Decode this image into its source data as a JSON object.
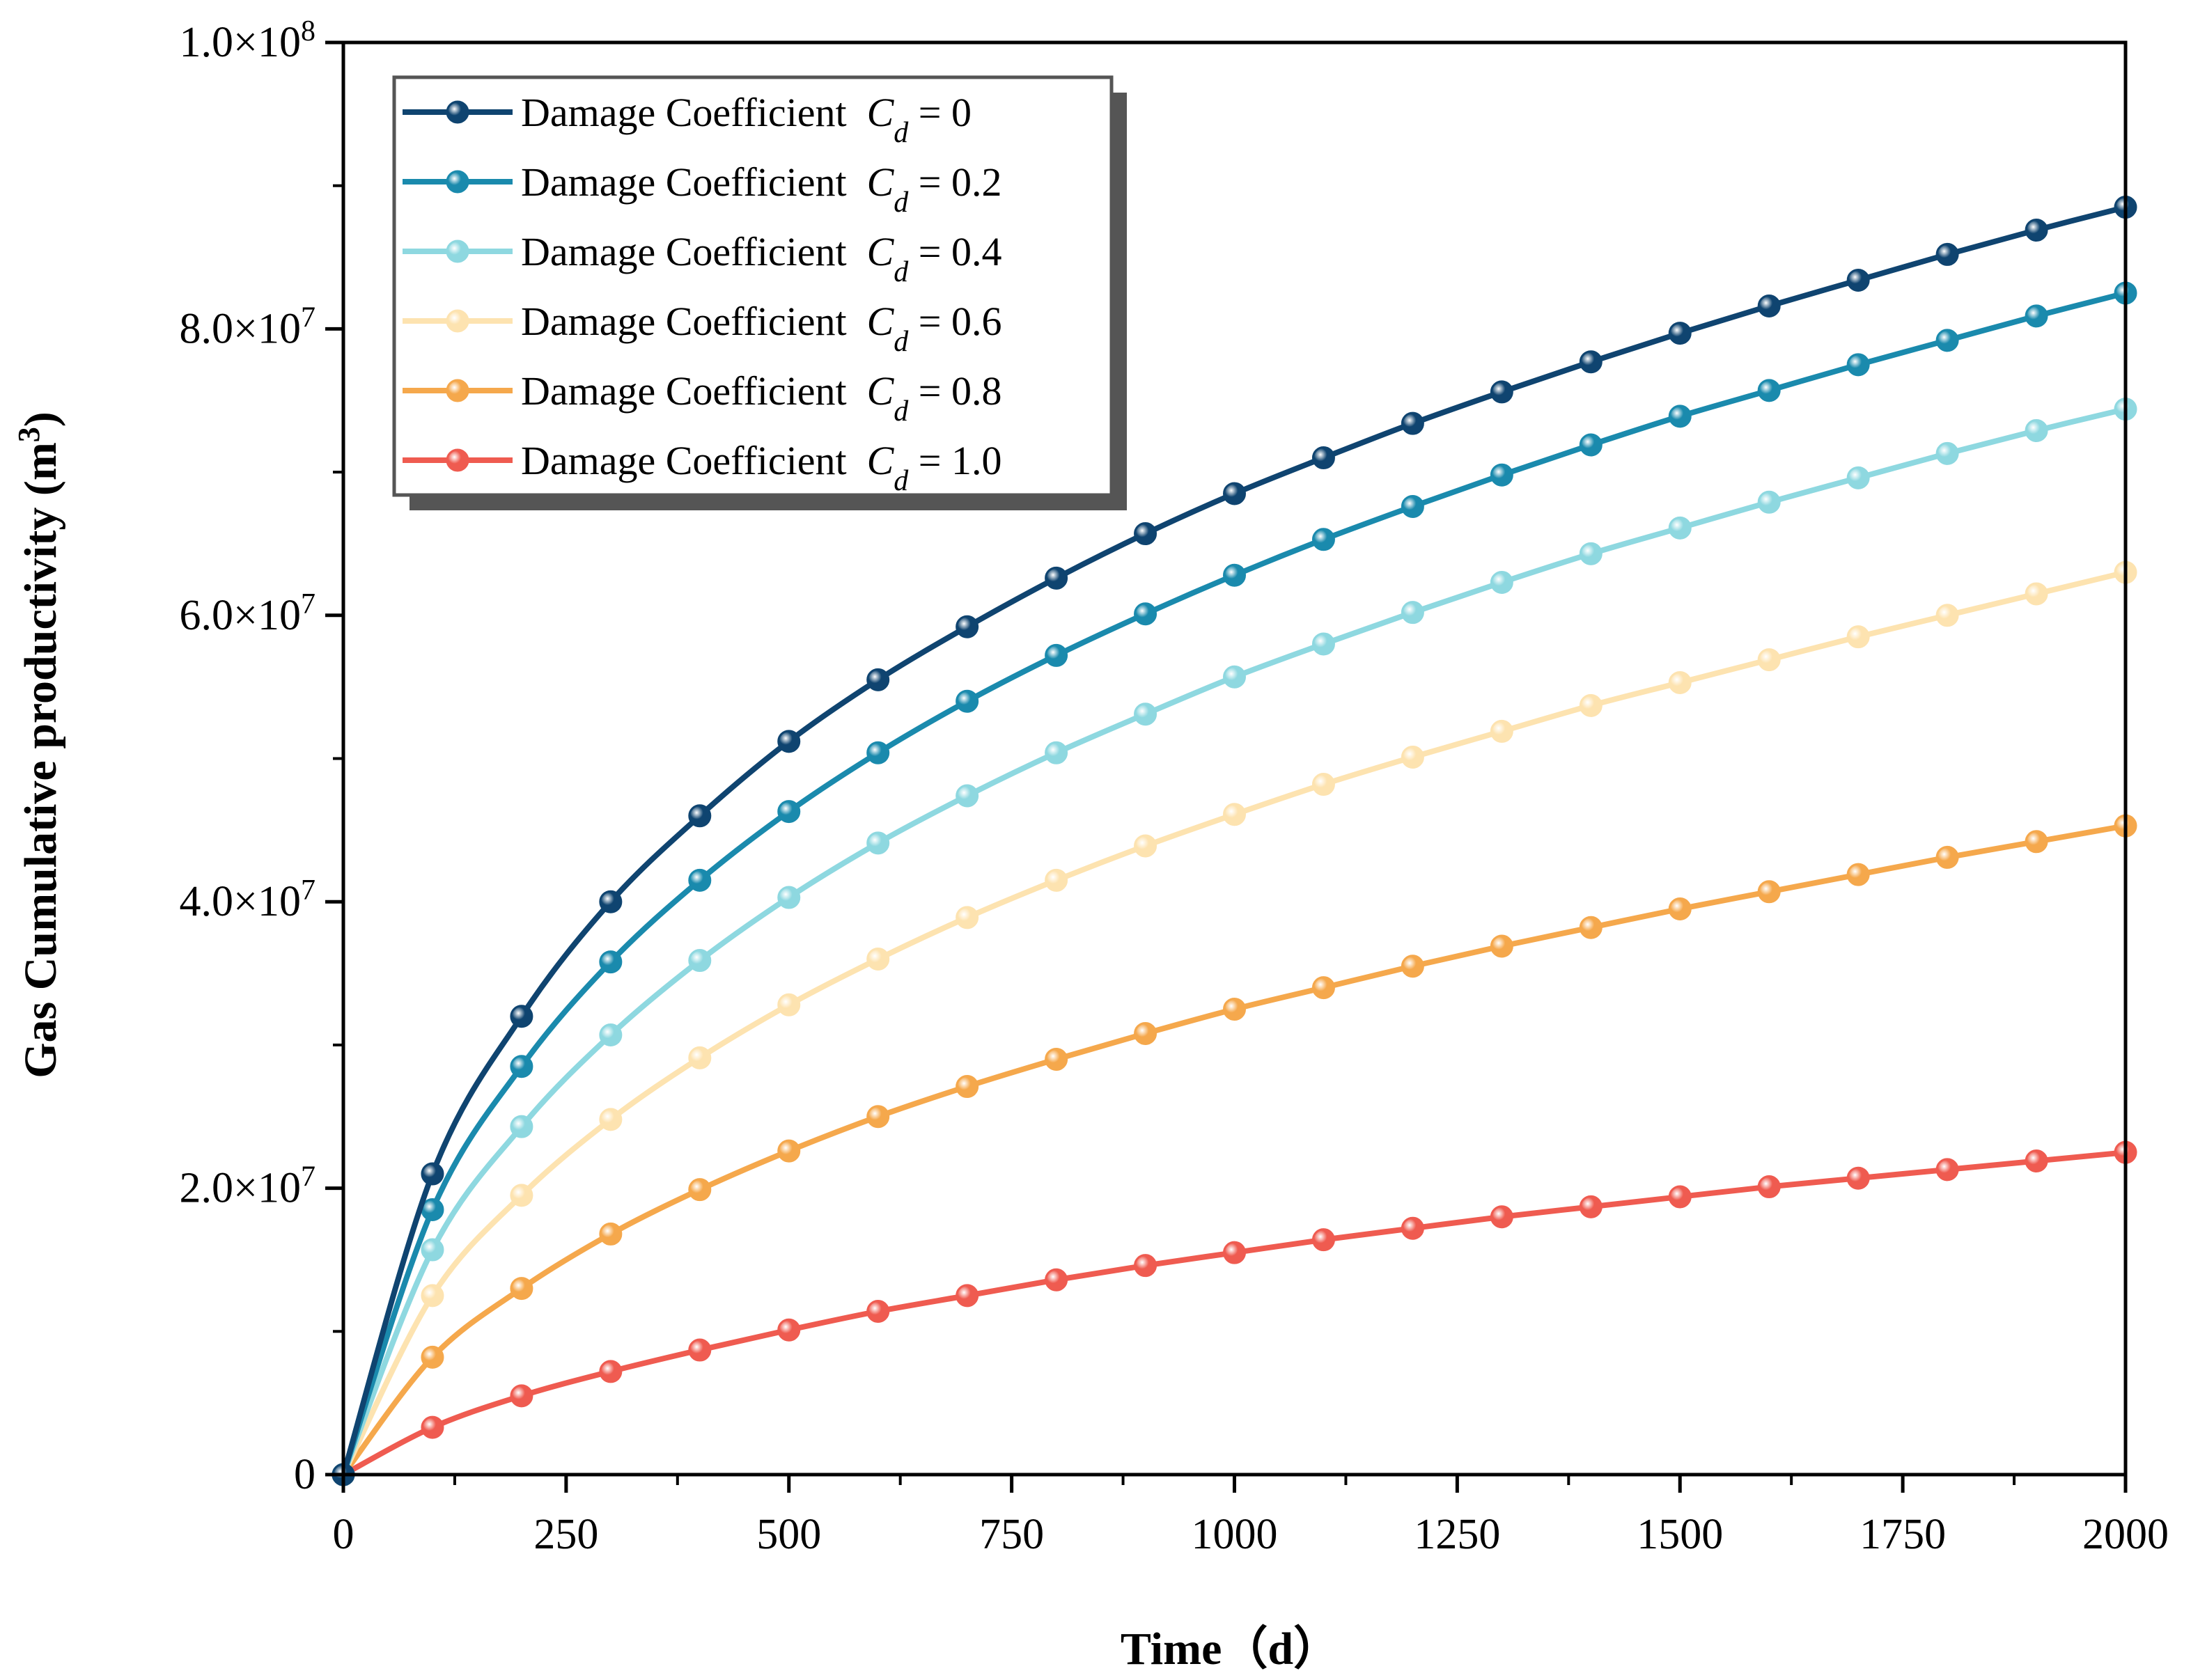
{
  "chart_data": {
    "type": "line",
    "title": "",
    "xlabel": "Time（d）",
    "ylabel": {
      "main": "Gas Cumulative productivity (m",
      "sup": "3",
      "end": ")"
    },
    "xlim": [
      0,
      2000
    ],
    "ylim": [
      0,
      100000000
    ],
    "x_ticks": [
      0,
      250,
      500,
      750,
      1000,
      1250,
      1500,
      1750,
      2000
    ],
    "x_tick_labels": [
      "0",
      "250",
      "500",
      "750",
      "1000",
      "1250",
      "1500",
      "1750",
      "2000"
    ],
    "y_ticks": [
      0,
      20000000,
      40000000,
      60000000,
      80000000,
      100000000
    ],
    "y_tick_labels": [
      {
        "base": "0",
        "exp": ""
      },
      {
        "base": "2.0×10",
        "exp": "7"
      },
      {
        "base": "4.0×10",
        "exp": "7"
      },
      {
        "base": "6.0×10",
        "exp": "7"
      },
      {
        "base": "8.0×10",
        "exp": "7"
      },
      {
        "base": "1.0×10",
        "exp": "8"
      }
    ],
    "grid": false,
    "legend_position": "top-left",
    "x": [
      0,
      100,
      200,
      300,
      400,
      500,
      600,
      700,
      800,
      900,
      1000,
      1100,
      1200,
      1300,
      1400,
      1500,
      1600,
      1700,
      1800,
      1900,
      2000
    ],
    "series": [
      {
        "name": "Damage Coefficient",
        "var": "C",
        "sub": "d",
        "eq": "= 0",
        "color": "#0f4470",
        "values": [
          0,
          21000000,
          32000000,
          40000000,
          46000000,
          51200000,
          55500000,
          59200000,
          62600000,
          65700000,
          68500000,
          71000000,
          73400000,
          75600000,
          77700000,
          79700000,
          81600000,
          83400000,
          85200000,
          86900000,
          88500000
        ]
      },
      {
        "name": "Damage Coefficient",
        "var": "C",
        "sub": "d",
        "eq": "= 0.2",
        "color": "#1a8aad",
        "values": [
          0,
          18500000,
          28500000,
          35800000,
          41500000,
          46300000,
          50400000,
          54000000,
          57200000,
          60100000,
          62800000,
          65300000,
          67600000,
          69800000,
          71900000,
          73900000,
          75700000,
          77500000,
          79200000,
          80900000,
          82500000
        ]
      },
      {
        "name": "Damage Coefficient",
        "var": "C",
        "sub": "d",
        "eq": "= 0.4",
        "color": "#8ed8e0",
        "values": [
          0,
          15700000,
          24300000,
          30700000,
          35900000,
          40300000,
          44100000,
          47400000,
          50400000,
          53100000,
          55700000,
          58000000,
          60200000,
          62300000,
          64300000,
          66100000,
          67900000,
          69600000,
          71300000,
          72900000,
          74400000
        ]
      },
      {
        "name": "Damage Coefficient",
        "var": "C",
        "sub": "d",
        "eq": "= 0.6",
        "color": "#fde3b0",
        "values": [
          0,
          12500000,
          19500000,
          24800000,
          29100000,
          32800000,
          36000000,
          38900000,
          41500000,
          43900000,
          46100000,
          48200000,
          50100000,
          51900000,
          53700000,
          55300000,
          56900000,
          58500000,
          60000000,
          61500000,
          63000000
        ]
      },
      {
        "name": "Damage Coefficient",
        "var": "C",
        "sub": "d",
        "eq": "= 0.8",
        "color": "#f5a84c",
        "values": [
          0,
          8200000,
          13000000,
          16800000,
          19900000,
          22600000,
          25000000,
          27100000,
          29000000,
          30800000,
          32500000,
          34000000,
          35500000,
          36900000,
          38200000,
          39500000,
          40700000,
          41900000,
          43100000,
          44200000,
          45300000
        ]
      },
      {
        "name": "Damage Coefficient",
        "var": "C",
        "sub": "d",
        "eq": "= 1.0",
        "color": "#ef5b50",
        "values": [
          0,
          3300000,
          5500000,
          7200000,
          8700000,
          10100000,
          11400000,
          12500000,
          13600000,
          14600000,
          15500000,
          16400000,
          17200000,
          18000000,
          18700000,
          19400000,
          20100000,
          20700000,
          21300000,
          21900000,
          22500000
        ]
      }
    ]
  }
}
